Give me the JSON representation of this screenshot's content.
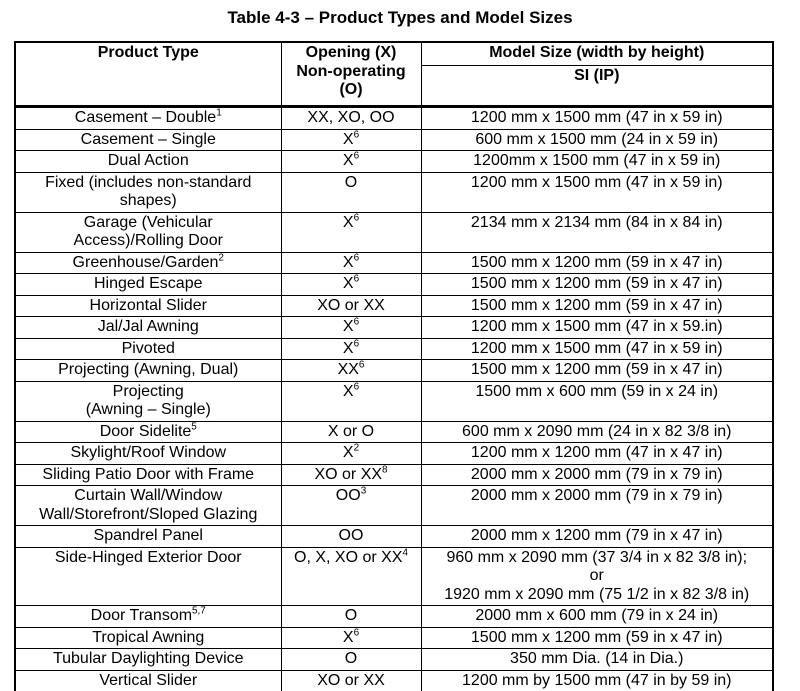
{
  "title": "Table 4-3 – Product Types and Model Sizes",
  "table": {
    "headers": {
      "product_type": "Product Type",
      "opening_line1": "Opening (X)",
      "opening_line2": "Non-operating",
      "opening_line3": "(O)",
      "model_size": "Model Size (width by height)",
      "model_size_sub": "SI (IP)"
    },
    "rows": [
      {
        "product_lines": [
          "Casement – Double"
        ],
        "product_sup": "1",
        "opening": "XX, XO, OO",
        "opening_sup": "",
        "size_lines": [
          "1200 mm x 1500 mm (47 in x 59 in)"
        ]
      },
      {
        "product_lines": [
          "Casement – Single"
        ],
        "product_sup": "",
        "opening": "X",
        "opening_sup": "6",
        "size_lines": [
          "600 mm x 1500 mm (24 in x 59 in)"
        ]
      },
      {
        "product_lines": [
          "Dual Action"
        ],
        "product_sup": "",
        "opening": "X",
        "opening_sup": "6",
        "size_lines": [
          "1200mm x 1500 mm (47 in x 59 in)"
        ]
      },
      {
        "product_lines": [
          "Fixed (includes non-standard",
          "shapes)"
        ],
        "product_sup": "",
        "opening": "O",
        "opening_sup": "",
        "size_lines": [
          "1200 mm x 1500 mm (47 in x 59 in)"
        ]
      },
      {
        "product_lines": [
          "Garage (Vehicular",
          "Access)/Rolling Door"
        ],
        "product_sup": "",
        "opening": "X",
        "opening_sup": "6",
        "size_lines": [
          "2134 mm x 2134 mm (84 in x 84 in)"
        ]
      },
      {
        "product_lines": [
          "Greenhouse/Garden"
        ],
        "product_sup": "2",
        "opening": "X",
        "opening_sup": "6",
        "size_lines": [
          "1500 mm x 1200 mm (59 in x 47 in)"
        ]
      },
      {
        "product_lines": [
          "Hinged Escape"
        ],
        "product_sup": "",
        "opening": "X",
        "opening_sup": "6",
        "size_lines": [
          "1500 mm x 1200 mm (59 in x 47 in)"
        ]
      },
      {
        "product_lines": [
          "Horizontal Slider"
        ],
        "product_sup": "",
        "opening": "XO or XX",
        "opening_sup": "",
        "size_lines": [
          "1500 mm x 1200 mm (59 in x 47 in)"
        ]
      },
      {
        "product_lines": [
          "Jal/Jal Awning"
        ],
        "product_sup": "",
        "opening": "X",
        "opening_sup": "6",
        "size_lines": [
          "1200 mm x 1500 mm (47 in x 59.in)"
        ]
      },
      {
        "product_lines": [
          "Pivoted"
        ],
        "product_sup": "",
        "opening": "X",
        "opening_sup": "6",
        "size_lines": [
          "1200 mm x 1500 mm (47 in x 59 in)"
        ]
      },
      {
        "product_lines": [
          "Projecting (Awning, Dual)"
        ],
        "product_sup": "",
        "opening": "XX",
        "opening_sup": "6",
        "size_lines": [
          "1500 mm x 1200 mm (59 in x 47 in)"
        ]
      },
      {
        "product_lines": [
          "Projecting",
          "(Awning – Single)"
        ],
        "product_sup": "",
        "opening": "X",
        "opening_sup": "6",
        "size_lines": [
          "1500 mm x 600 mm (59 in x 24 in)"
        ]
      },
      {
        "product_lines": [
          "Door Sidelite"
        ],
        "product_sup": "5",
        "opening": "X or O",
        "opening_sup": "",
        "size_lines": [
          "600 mm x 2090 mm (24 in x 82 3/8 in)"
        ]
      },
      {
        "product_lines": [
          "Skylight/Roof Window"
        ],
        "product_sup": "",
        "opening": "X",
        "opening_sup": "2",
        "size_lines": [
          "1200 mm x 1200 mm (47 in x 47 in)"
        ]
      },
      {
        "product_lines": [
          "Sliding Patio Door with Frame"
        ],
        "product_sup": "",
        "opening": "XO or XX",
        "opening_sup": "8",
        "size_lines": [
          "2000 mm x 2000 mm (79 in x 79 in)"
        ]
      },
      {
        "product_lines": [
          "Curtain Wall/Window",
          "Wall/Storefront/Sloped Glazing"
        ],
        "product_sup": "",
        "opening": "OO",
        "opening_sup": "3",
        "size_lines": [
          "2000 mm x 2000 mm (79 in x 79 in)"
        ]
      },
      {
        "product_lines": [
          "Spandrel Panel"
        ],
        "product_sup": "",
        "opening": "OO",
        "opening_sup": "",
        "size_lines": [
          "2000 mm x 1200 mm (79 in x 47 in)"
        ]
      },
      {
        "product_lines": [
          "Side-Hinged Exterior Door"
        ],
        "product_sup": "",
        "opening": "O, X, XO or XX",
        "opening_sup": "4",
        "size_lines": [
          "960 mm x 2090 mm (37 3/4 in x 82 3/8 in);",
          "or",
          "1920 mm x 2090 mm (75 1/2 in x 82 3/8 in)"
        ]
      },
      {
        "product_lines": [
          "Door Transom"
        ],
        "product_sup": "5,7",
        "opening": "O",
        "opening_sup": "",
        "size_lines": [
          "2000 mm x 600 mm (79 in x 24 in)"
        ]
      },
      {
        "product_lines": [
          "Tropical Awning"
        ],
        "product_sup": "",
        "opening": "X",
        "opening_sup": "6",
        "size_lines": [
          "1500 mm x 1200 mm (59 in x 47 in)"
        ]
      },
      {
        "product_lines": [
          "Tubular Daylighting Device"
        ],
        "product_sup": "",
        "opening": "O",
        "opening_sup": "",
        "size_lines": [
          "350 mm Dia. (14 in Dia.)"
        ]
      },
      {
        "product_lines": [
          "Vertical Slider"
        ],
        "product_sup": "",
        "opening": "XO or XX",
        "opening_sup": "",
        "size_lines": [
          "1200 mm by 1500 mm (47 in by 59 in)"
        ]
      }
    ]
  }
}
